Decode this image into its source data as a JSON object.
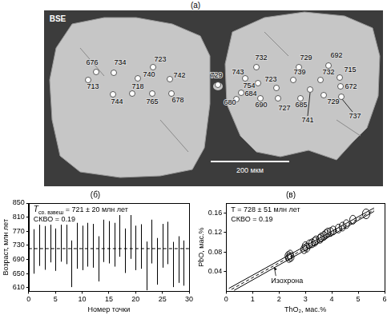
{
  "panel_a": {
    "title": "(а)",
    "image_label": "BSE",
    "scale_bar": "200 мкм",
    "spots": [
      676,
      734,
      713,
      744,
      723,
      740,
      742,
      718,
      765,
      678,
      729,
      732,
      729,
      692,
      743,
      739,
      732,
      715,
      754,
      723,
      684,
      680,
      690,
      727,
      685,
      741,
      729,
      672,
      737
    ]
  },
  "chart_data": [
    {
      "type": "errorbar",
      "title": "(б)",
      "x": [
        1,
        2,
        3,
        4,
        5,
        6,
        7,
        8,
        9,
        10,
        11,
        12,
        13,
        14,
        15,
        16,
        17,
        18,
        19,
        20,
        21,
        22,
        23,
        24,
        25,
        26,
        27,
        28,
        29
      ],
      "values": [
        713,
        734,
        723,
        742,
        718,
        744,
        740,
        678,
        729,
        723,
        732,
        729,
        692,
        743,
        739,
        732,
        765,
        715,
        754,
        723,
        727,
        672,
        741,
        685,
        729,
        737,
        676,
        690,
        680
      ],
      "errors": [
        63,
        62,
        62,
        60,
        60,
        60,
        63,
        66,
        65,
        63,
        62,
        62,
        64,
        60,
        60,
        62,
        67,
        63,
        62,
        63,
        63,
        69,
        62,
        66,
        62,
        60,
        64,
        66,
        64
      ],
      "color": "#000000",
      "reference_line": {
        "value": 721,
        "line_style": "dashed"
      },
      "annotations": [
        {
          "text": "T",
          "subscript": "ср. взвеш",
          "suffix": " = 721 ± 20 млн лет"
        },
        {
          "text": "СКВО = 0.19"
        }
      ],
      "x_label": "Номер точки",
      "y_label": "Возраст, млн лет",
      "xlim": [
        0,
        30
      ],
      "xticks": [
        0,
        5,
        10,
        15,
        20,
        25,
        30
      ],
      "ylim": [
        600,
        850
      ],
      "yticks": [
        610,
        650,
        690,
        730,
        770,
        810,
        850
      ],
      "grid": false
    },
    {
      "type": "scatter",
      "title": "(в)",
      "marker": "ellipse",
      "color": "#000000",
      "x": [
        2.35,
        2.38,
        2.42,
        2.45,
        2.95,
        3.0,
        3.05,
        3.15,
        3.25,
        3.35,
        3.4,
        3.55,
        3.6,
        3.7,
        3.78,
        3.85,
        3.95,
        4.05,
        4.25,
        4.4,
        4.55,
        4.8,
        5.3
      ],
      "values": [
        0.072,
        0.068,
        0.075,
        0.07,
        0.086,
        0.092,
        0.089,
        0.096,
        0.098,
        0.101,
        0.104,
        0.107,
        0.11,
        0.113,
        0.117,
        0.12,
        0.121,
        0.124,
        0.128,
        0.132,
        0.137,
        0.146,
        0.158
      ],
      "x_errors": [
        0.12,
        0.12,
        0.12,
        0.12,
        0.12,
        0.12,
        0.12,
        0.12,
        0.12,
        0.12,
        0.12,
        0.12,
        0.12,
        0.12,
        0.12,
        0.12,
        0.12,
        0.12,
        0.12,
        0.12,
        0.12,
        0.12,
        0.14
      ],
      "y_errors": [
        0.009,
        0.009,
        0.009,
        0.009,
        0.009,
        0.009,
        0.009,
        0.009,
        0.009,
        0.009,
        0.009,
        0.009,
        0.009,
        0.009,
        0.009,
        0.009,
        0.009,
        0.009,
        0.009,
        0.009,
        0.009,
        0.009,
        0.01
      ],
      "series": [
        {
          "name": "Изохрона",
          "type": "line",
          "color": "#000000",
          "line_style": "dashed",
          "x": [
            0.2,
            5.6
          ],
          "values": [
            0.004,
            0.166
          ]
        },
        {
          "type": "line",
          "color": "#000000",
          "line_style": "solid",
          "x": [
            0.1,
            5.6
          ],
          "values": [
            0.006,
            0.17
          ]
        },
        {
          "type": "line",
          "color": "#000000",
          "line_style": "solid",
          "x": [
            0.3,
            5.6
          ],
          "values": [
            0.002,
            0.163
          ]
        }
      ],
      "annotations": [
        {
          "text": "T = 728 ± 51 млн лет"
        },
        {
          "text": "СКВО = 0.19"
        }
      ],
      "x_label": "ThO₂, мас.%",
      "y_label": "PbO, мас.%",
      "xlim": [
        0,
        6
      ],
      "xticks": [
        0,
        1,
        2,
        3,
        4,
        5,
        6
      ],
      "ylim": [
        0,
        0.18
      ],
      "yticks": [
        0.04,
        0.08,
        0.12,
        0.16
      ],
      "grid": false
    }
  ]
}
